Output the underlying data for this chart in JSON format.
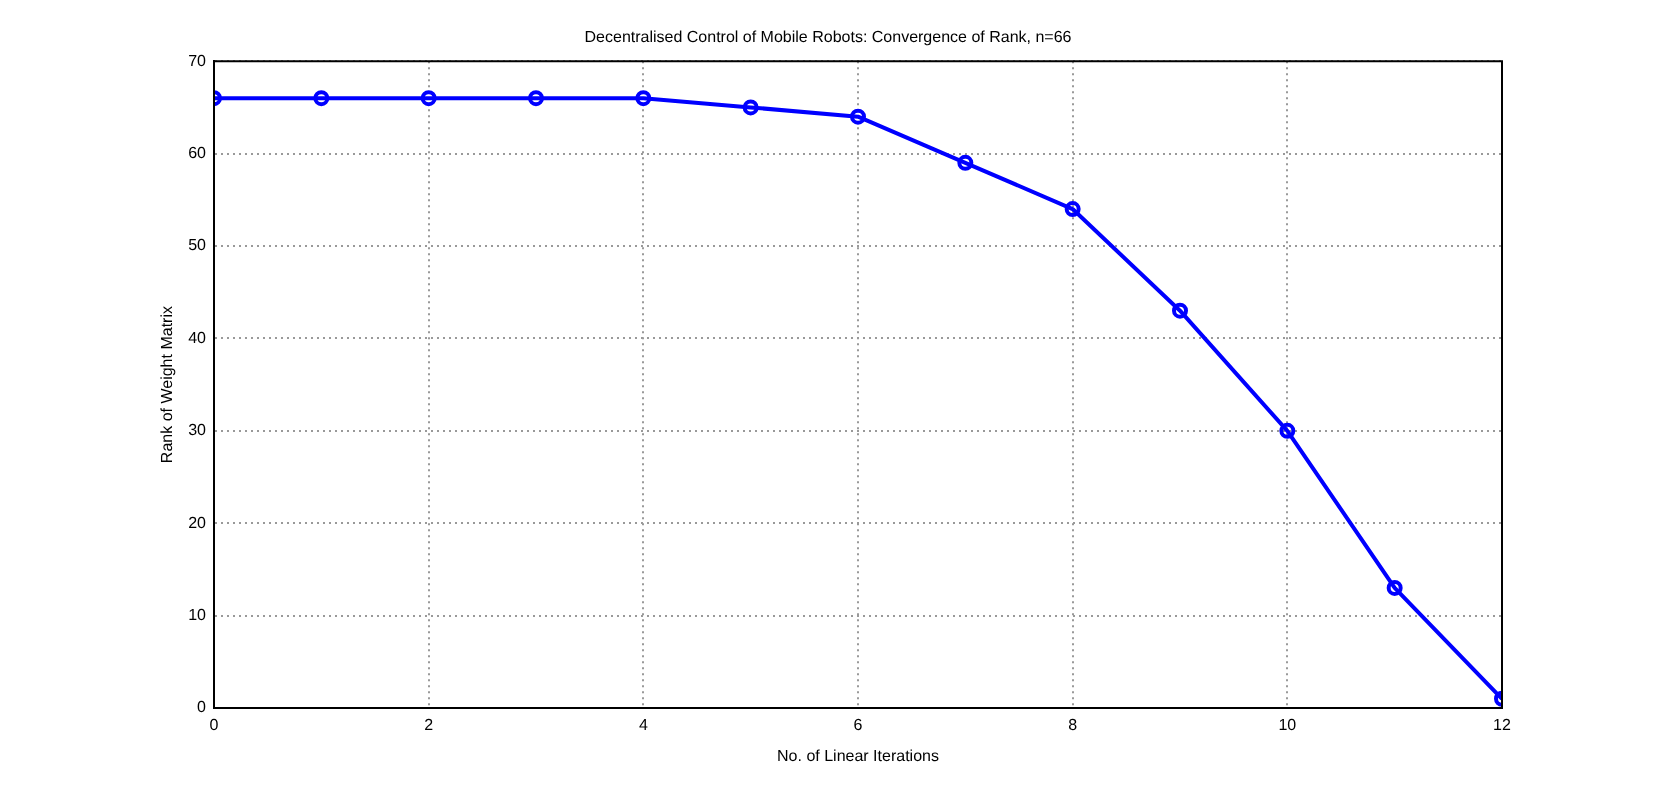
{
  "chart_data": {
    "type": "line",
    "title": "Decentralised Control of Mobile Robots: Convergence of Rank, n=66",
    "xlabel": "No. of Linear Iterations",
    "ylabel": "Rank of Weight Matrix",
    "x": [
      0,
      1,
      2,
      3,
      4,
      5,
      6,
      7,
      8,
      9,
      10,
      11,
      12
    ],
    "series": [
      {
        "color": "#0000ff",
        "values": [
          66,
          66,
          66,
          66,
          66,
          65,
          64,
          59,
          54,
          43,
          30,
          13,
          1
        ]
      }
    ],
    "xlim": [
      0,
      12
    ],
    "xticks": [
      0,
      2,
      4,
      6,
      8,
      10,
      12
    ],
    "ylim": [
      0,
      70
    ],
    "yticks": [
      0,
      10,
      20,
      30,
      40,
      50,
      60,
      70
    ],
    "grid": true,
    "legend": false,
    "marker": "circle",
    "line_style": "solid"
  }
}
